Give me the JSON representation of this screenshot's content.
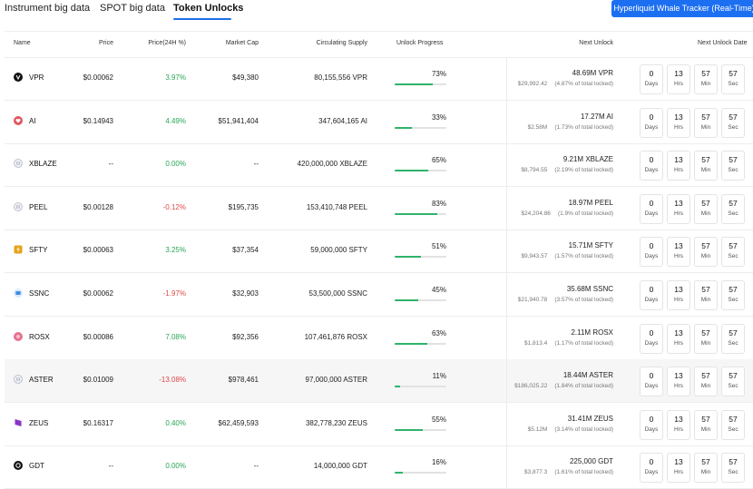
{
  "tabs": [
    {
      "label": "Instrument big data",
      "active": false
    },
    {
      "label": "SPOT big data",
      "active": false
    },
    {
      "label": "Token Unlocks",
      "active": true
    }
  ],
  "cta_label": "Hyperliquid Whale Tracker (Real-Time)",
  "columns": {
    "name": "Name",
    "price": "Price",
    "change": "Price(24H %)",
    "market_cap": "Market Cap",
    "circulating": "Circulating Supply",
    "progress": "Unlock Progress",
    "next": "Next Unlock",
    "next_date": "Next Unlock Date"
  },
  "countdown_units": {
    "days": "Days",
    "hrs": "Hrs",
    "min": "Min",
    "sec": "Sec"
  },
  "rows": [
    {
      "name": "VPR",
      "icon": "vpr-logo-icon",
      "icon_color": "#111111",
      "price": "$0.00062",
      "change": "3.97%",
      "direction": "up",
      "market_cap": "$49,380",
      "circulating": "80,155,556 VPR",
      "progress": 0.73,
      "progress_label": "73%",
      "next_amount": "48.69M VPR",
      "next_usd": "$29,992.42",
      "next_pct": "(4.87% of total locked)",
      "days": "0",
      "hrs": "13",
      "min": "57",
      "sec": "57"
    },
    {
      "name": "AI",
      "icon": "heart-logo-icon",
      "icon_color": "#e0585f",
      "price": "$0.14943",
      "change": "4.49%",
      "direction": "up",
      "market_cap": "$51,941,404",
      "circulating": "347,604,165 AI",
      "progress": 0.33,
      "progress_label": "33%",
      "next_amount": "17.27M AI",
      "next_usd": "$2.58M",
      "next_pct": "(1.73% of total locked)",
      "days": "0",
      "hrs": "13",
      "min": "57",
      "sec": "57"
    },
    {
      "name": "XBLAZE",
      "icon": "placeholder-token-icon",
      "icon_color": "#b8b8c8",
      "price": "--",
      "change": "0.00%",
      "direction": "up",
      "market_cap": "--",
      "circulating": "420,000,000 XBLAZE",
      "progress": 0.65,
      "progress_label": "65%",
      "next_amount": "9.21M XBLAZE",
      "next_usd": "$8,794.55",
      "next_pct": "(2.19% of total locked)",
      "days": "0",
      "hrs": "13",
      "min": "57",
      "sec": "57"
    },
    {
      "name": "PEEL",
      "icon": "placeholder-token-icon",
      "icon_color": "#b8b8c8",
      "price": "$0.00128",
      "change": "-0.12%",
      "direction": "down",
      "market_cap": "$195,735",
      "circulating": "153,410,748 PEEL",
      "progress": 0.83,
      "progress_label": "83%",
      "next_amount": "18.97M PEEL",
      "next_usd": "$24,204.86",
      "next_pct": "(1.9% of total locked)",
      "days": "0",
      "hrs": "13",
      "min": "57",
      "sec": "57"
    },
    {
      "name": "SFTY",
      "icon": "sfty-logo-icon",
      "icon_color": "#e5a21a",
      "price": "$0.00063",
      "change": "3.25%",
      "direction": "up",
      "market_cap": "$37,354",
      "circulating": "59,000,000 SFTY",
      "progress": 0.51,
      "progress_label": "51%",
      "next_amount": "15.71M SFTY",
      "next_usd": "$9,943.57",
      "next_pct": "(1.57% of total locked)",
      "days": "0",
      "hrs": "13",
      "min": "57",
      "sec": "57"
    },
    {
      "name": "SSNC",
      "icon": "ssnc-logo-icon",
      "icon_color": "#3b8fe0",
      "price": "$0.00062",
      "change": "-1.97%",
      "direction": "down",
      "market_cap": "$32,903",
      "circulating": "53,500,000 SSNC",
      "progress": 0.45,
      "progress_label": "45%",
      "next_amount": "35.68M SSNC",
      "next_usd": "$21,940.78",
      "next_pct": "(3.57% of total locked)",
      "days": "0",
      "hrs": "13",
      "min": "57",
      "sec": "57"
    },
    {
      "name": "ROSX",
      "icon": "rosx-logo-icon",
      "icon_color": "#e8728f",
      "price": "$0.00086",
      "change": "7.08%",
      "direction": "up",
      "market_cap": "$92,356",
      "circulating": "107,461,876 ROSX",
      "progress": 0.63,
      "progress_label": "63%",
      "next_amount": "2.11M ROSX",
      "next_usd": "$1,813.4",
      "next_pct": "(1.17% of total locked)",
      "days": "0",
      "hrs": "13",
      "min": "57",
      "sec": "57"
    },
    {
      "name": "ASTER",
      "icon": "placeholder-token-icon",
      "icon_color": "#b8b8c8",
      "price": "$0.01009",
      "change": "-13.08%",
      "direction": "down",
      "market_cap": "$978,461",
      "circulating": "97,000,000 ASTER",
      "progress": 0.11,
      "progress_label": "11%",
      "next_amount": "18.44M ASTER",
      "next_usd": "$186,025.22",
      "next_pct": "(1.84% of total locked)",
      "days": "0",
      "hrs": "13",
      "min": "57",
      "sec": "57"
    },
    {
      "name": "ZEUS",
      "icon": "zeus-logo-icon",
      "icon_color": "#8a35c9",
      "price": "$0.16317",
      "change": "0.40%",
      "direction": "up",
      "market_cap": "$62,459,593",
      "circulating": "382,778,230 ZEUS",
      "progress": 0.55,
      "progress_label": "55%",
      "next_amount": "31.41M ZEUS",
      "next_usd": "$5.12M",
      "next_pct": "(3.14% of total locked)",
      "days": "0",
      "hrs": "13",
      "min": "57",
      "sec": "57"
    },
    {
      "name": "GDT",
      "icon": "gdt-logo-icon",
      "icon_color": "#111111",
      "price": "--",
      "change": "0.00%",
      "direction": "up",
      "market_cap": "--",
      "circulating": "14,000,000 GDT",
      "progress": 0.16,
      "progress_label": "16%",
      "next_amount": "225,000 GDT",
      "next_usd": "$3,877.3",
      "next_pct": "(1.61% of total locked)",
      "days": "0",
      "hrs": "13",
      "min": "57",
      "sec": "57"
    }
  ]
}
